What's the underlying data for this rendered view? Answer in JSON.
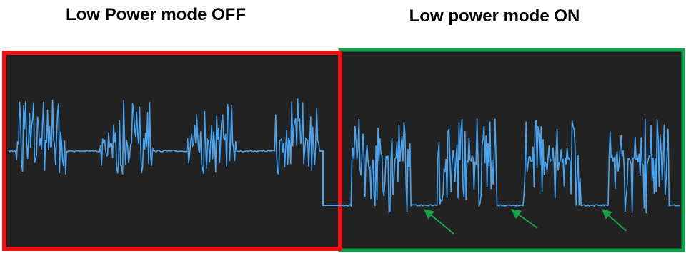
{
  "titles": {
    "left": "Low Power mode OFF",
    "right": "Low power mode ON"
  }
}
